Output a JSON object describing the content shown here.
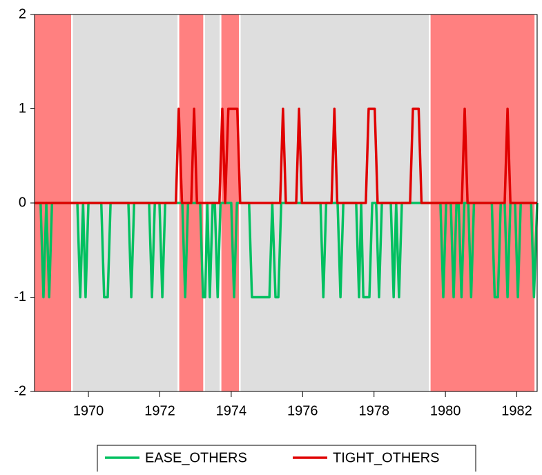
{
  "chart_data": {
    "type": "line",
    "xlim": [
      1968.49,
      1982.57
    ],
    "ylim": [
      -2,
      2
    ],
    "xticks": [
      1970,
      1972,
      1974,
      1976,
      1978,
      1980,
      1982
    ],
    "yticks": [
      -2,
      -1,
      0,
      1,
      2
    ],
    "shading": [
      {
        "start": 1968.49,
        "end": 1969.54,
        "color": "#ff8080"
      },
      {
        "start": 1969.54,
        "end": 1972.52,
        "color": "#dedede"
      },
      {
        "start": 1972.52,
        "end": 1973.24,
        "color": "#ff8080"
      },
      {
        "start": 1973.24,
        "end": 1973.7,
        "color": "#dedede"
      },
      {
        "start": 1973.7,
        "end": 1974.24,
        "color": "#ff8080"
      },
      {
        "start": 1974.24,
        "end": 1979.56,
        "color": "#dedede"
      },
      {
        "start": 1979.56,
        "end": 1982.52,
        "color": "#ff8080"
      },
      {
        "start": 1982.52,
        "end": 1982.57,
        "color": "#dedede"
      }
    ],
    "series": [
      {
        "name": "EASE_OTHERS",
        "color": "#00c060",
        "x": [
          1968.5,
          1968.66,
          1968.74,
          1968.82,
          1968.9,
          1968.98,
          1969.69,
          1969.77,
          1969.85,
          1969.92,
          1970.0,
          1970.36,
          1970.44,
          1970.54,
          1970.62,
          1971.12,
          1971.2,
          1971.28,
          1971.7,
          1971.78,
          1971.86,
          1971.99,
          1972.07,
          1972.15,
          1972.63,
          1972.71,
          1972.79,
          1973.13,
          1973.21,
          1973.27,
          1973.33,
          1973.4,
          1973.48,
          1973.54,
          1973.62,
          1973.7,
          1974.0,
          1974.08,
          1974.16,
          1974.5,
          1974.58,
          1975.07,
          1975.15,
          1975.24,
          1975.32,
          1975.4,
          1976.5,
          1976.58,
          1976.66,
          1976.98,
          1977.06,
          1977.14,
          1977.5,
          1977.58,
          1977.64,
          1977.7,
          1977.87,
          1977.95,
          1978.06,
          1978.14,
          1978.22,
          1978.47,
          1978.55,
          1978.62,
          1978.7,
          1978.78,
          1979.86,
          1979.94,
          1980.02,
          1980.15,
          1980.23,
          1980.31,
          1980.37,
          1980.45,
          1980.53,
          1980.64,
          1980.72,
          1980.8,
          1981.3,
          1981.38,
          1981.47,
          1981.55,
          1981.66,
          1981.74,
          1981.82,
          1981.95,
          1982.03,
          1982.11,
          1982.4,
          1982.48,
          1982.57
        ],
        "values": [
          0,
          0,
          -1,
          0,
          -1,
          0,
          0,
          -1,
          0,
          -1,
          0,
          0,
          -1,
          -1,
          0,
          0,
          -1,
          0,
          0,
          -1,
          0,
          0,
          -1,
          0,
          0,
          -1,
          0,
          0,
          -1,
          -1,
          0,
          -1,
          0,
          0,
          -1,
          0,
          0,
          -1,
          0,
          0,
          -1,
          -1,
          0,
          -1,
          -1,
          0,
          0,
          -1,
          0,
          0,
          -1,
          0,
          0,
          -1,
          0,
          -1,
          -1,
          0,
          0,
          -1,
          0,
          0,
          -1,
          0,
          -1,
          0,
          0,
          -1,
          0,
          0,
          -1,
          0,
          0,
          -1,
          0,
          0,
          -1,
          0,
          0,
          -1,
          -1,
          0,
          0,
          -1,
          0,
          0,
          -1,
          0,
          0,
          -1,
          0
        ]
      },
      {
        "name": "TIGHT_OTHERS",
        "color": "#e00000",
        "x": [
          1968.5,
          1972.45,
          1972.53,
          1972.62,
          1972.88,
          1972.96,
          1973.04,
          1973.67,
          1973.75,
          1973.83,
          1973.92,
          1974.17,
          1974.25,
          1975.37,
          1975.45,
          1975.53,
          1975.82,
          1975.9,
          1975.98,
          1976.81,
          1976.89,
          1976.97,
          1977.77,
          1977.85,
          1978.02,
          1978.1,
          1979.01,
          1979.09,
          1979.25,
          1979.33,
          1980.46,
          1980.54,
          1980.62,
          1981.66,
          1981.74,
          1981.82,
          1982.57
        ],
        "values": [
          0,
          0,
          1,
          0,
          0,
          1,
          0,
          0,
          1,
          0,
          1,
          1,
          0,
          0,
          1,
          0,
          0,
          1,
          0,
          0,
          1,
          0,
          0,
          1,
          1,
          0,
          0,
          1,
          1,
          0,
          0,
          1,
          0,
          0,
          1,
          0,
          0
        ]
      }
    ]
  }
}
